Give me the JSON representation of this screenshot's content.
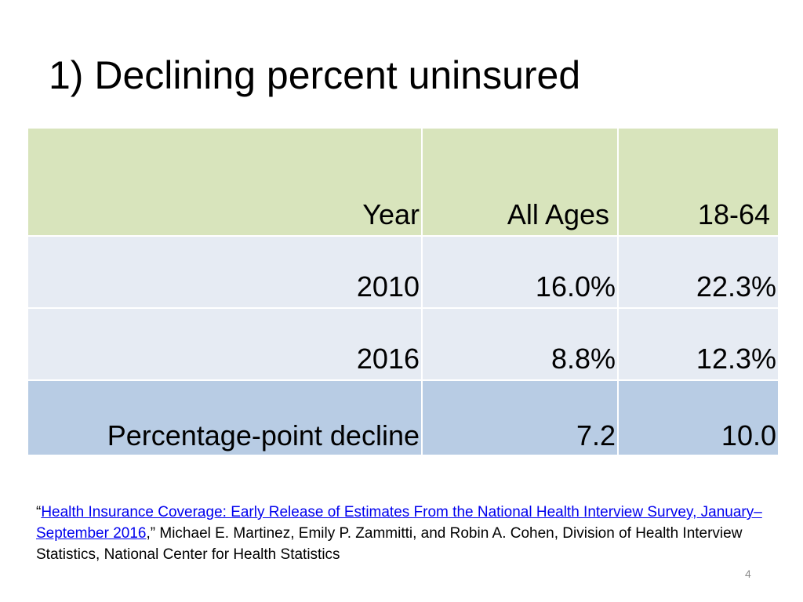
{
  "slide": {
    "title": "1) Declining percent uninsured",
    "page_number": "4"
  },
  "table": {
    "headers": [
      "Year",
      "All Ages",
      "18-64"
    ],
    "rows": [
      [
        "2010",
        "16.0%",
        "22.3%"
      ],
      [
        "2016",
        "8.8%",
        "12.3%"
      ]
    ],
    "total_row": [
      "Percentage-point decline",
      "7.2",
      "10.0"
    ]
  },
  "citation": {
    "open_quote": "“",
    "link_text": "Health Insurance Coverage: Early Release of Estimates From the National Health Interview Survey, January–September 2016",
    "rest": ",” Michael E. Martinez, Emily P. Zammitti, and Robin A. Cohen, Division of Health Interview Statistics, National Center for Health Statistics"
  },
  "colors": {
    "header_row": "#d8e4bc",
    "body_row": "#e6ebf3",
    "total_row": "#b8cce4",
    "link": "#0000ee"
  }
}
